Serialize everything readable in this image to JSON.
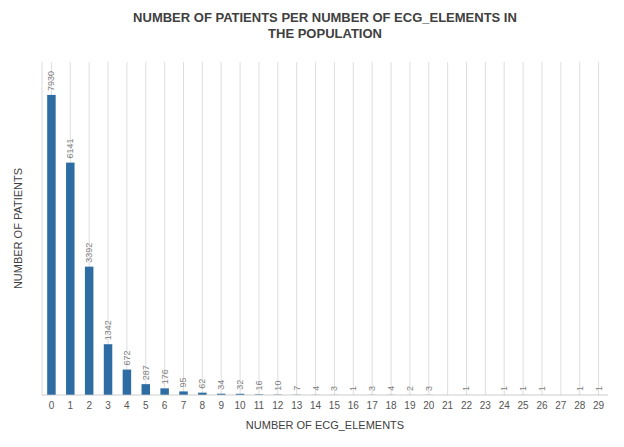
{
  "chart_data": {
    "type": "bar",
    "title": "NUMBER OF PATIENTS  PER  NUMBER OF ECG_ELEMENTS IN\nTHE POPULATION",
    "x_label": "NUMBER OF ECG_ELEMENTS",
    "y_label": "NUMBER OF PATIENTS",
    "categories": [
      0,
      1,
      2,
      3,
      4,
      5,
      6,
      7,
      8,
      9,
      10,
      11,
      12,
      13,
      14,
      15,
      16,
      17,
      18,
      19,
      20,
      21,
      22,
      23,
      24,
      25,
      26,
      27,
      28,
      29
    ],
    "values": [
      7930,
      6141,
      3392,
      1342,
      672,
      287,
      176,
      95,
      62,
      34,
      32,
      16,
      10,
      7,
      4,
      3,
      1,
      3,
      4,
      2,
      3,
      0,
      1,
      0,
      1,
      1,
      1,
      0,
      1,
      1
    ],
    "color": "#2e6da4",
    "ylim": [
      0,
      8800
    ],
    "grid": "x",
    "data_labels": true,
    "tick_labels": "x"
  }
}
